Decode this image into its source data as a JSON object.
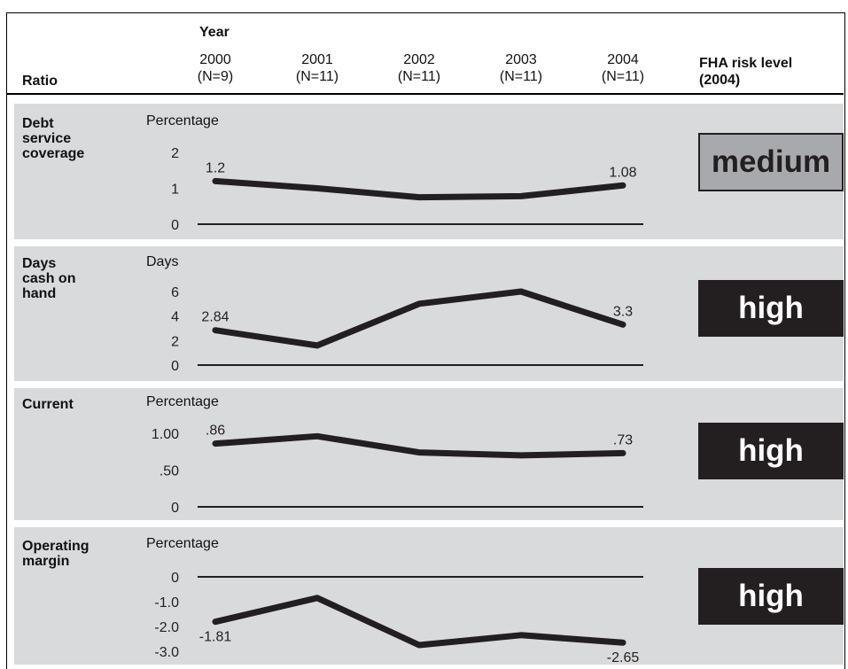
{
  "header": {
    "year_label": "Year",
    "ratio_label": "Ratio",
    "risk_label_line1": "FHA risk level",
    "risk_label_line2": "(2004)",
    "years": [
      {
        "year": "2000",
        "n": "(N=9)"
      },
      {
        "year": "2001",
        "n": "(N=11)"
      },
      {
        "year": "2002",
        "n": "(N=11)"
      },
      {
        "year": "2003",
        "n": "(N=11)"
      },
      {
        "year": "2004",
        "n": "(N=11)"
      }
    ]
  },
  "chart_data": [
    {
      "type": "line",
      "ratio_lines": [
        "Debt",
        "service",
        "coverage"
      ],
      "ylabel": "Percentage",
      "x": [
        "2000",
        "2001",
        "2002",
        "2003",
        "2004"
      ],
      "values": [
        1.2,
        1.0,
        0.75,
        0.78,
        1.08
      ],
      "ylim": [
        0,
        2
      ],
      "yticks": [
        {
          "v": 0,
          "label": "0"
        },
        {
          "v": 1,
          "label": "1"
        },
        {
          "v": 2,
          "label": "2"
        }
      ],
      "labels": [
        {
          "i": 0,
          "text": "1.2",
          "pos": "above"
        },
        {
          "i": 4,
          "text": "1.08",
          "pos": "above"
        }
      ],
      "risk": "medium"
    },
    {
      "type": "line",
      "ratio_lines": [
        "Days",
        "cash on",
        "hand"
      ],
      "ylabel": "Days",
      "x": [
        "2000",
        "2001",
        "2002",
        "2003",
        "2004"
      ],
      "values": [
        2.84,
        1.6,
        5.0,
        6.0,
        3.3
      ],
      "ylim": [
        0,
        6
      ],
      "yticks": [
        {
          "v": 0,
          "label": "0"
        },
        {
          "v": 2,
          "label": "2"
        },
        {
          "v": 4,
          "label": "4"
        },
        {
          "v": 6,
          "label": "6"
        }
      ],
      "labels": [
        {
          "i": 0,
          "text": "2.84",
          "pos": "above"
        },
        {
          "i": 4,
          "text": "3.3",
          "pos": "above"
        }
      ],
      "risk": "high"
    },
    {
      "type": "line",
      "ratio_lines": [
        "Current"
      ],
      "ylabel": "Percentage",
      "x": [
        "2000",
        "2001",
        "2002",
        "2003",
        "2004"
      ],
      "values": [
        0.86,
        0.96,
        0.74,
        0.7,
        0.73
      ],
      "ylim": [
        0,
        1
      ],
      "yticks": [
        {
          "v": 0,
          "label": "0"
        },
        {
          "v": 0.5,
          "label": ".50"
        },
        {
          "v": 1,
          "label": "1.00"
        }
      ],
      "labels": [
        {
          "i": 0,
          "text": ".86",
          "pos": "above"
        },
        {
          "i": 4,
          "text": ".73",
          "pos": "above"
        }
      ],
      "risk": "high"
    },
    {
      "type": "line",
      "ratio_lines": [
        "Operating",
        "margin"
      ],
      "ylabel": "Percentage",
      "x": [
        "2000",
        "2001",
        "2002",
        "2003",
        "2004"
      ],
      "values": [
        -1.81,
        -0.85,
        -2.75,
        -2.35,
        -2.65
      ],
      "ylim": [
        -3,
        0
      ],
      "yticks": [
        {
          "v": 0,
          "label": "0"
        },
        {
          "v": -1,
          "label": "-1.0"
        },
        {
          "v": -2,
          "label": "-2.0"
        },
        {
          "v": -3,
          "label": "-3.0"
        }
      ],
      "labels": [
        {
          "i": 0,
          "text": "-1.81",
          "pos": "below"
        },
        {
          "i": 4,
          "text": "-2.65",
          "pos": "below"
        }
      ],
      "risk": "high"
    }
  ]
}
